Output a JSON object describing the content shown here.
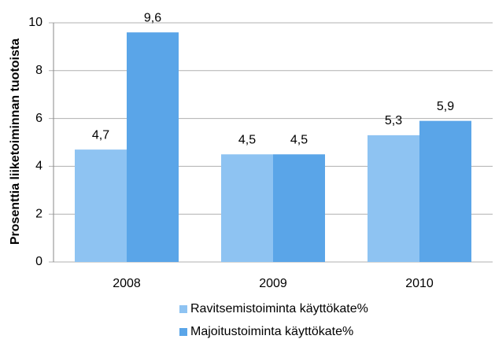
{
  "chart_data": {
    "type": "bar",
    "ylabel": "Prosenttia liiketoiminnan tuotoista",
    "categories": [
      "2008",
      "2009",
      "2010"
    ],
    "series": [
      {
        "name": "Ravitsemistoiminta käyttökate%",
        "color": "#8ec3f2",
        "values": [
          4.7,
          4.5,
          5.3
        ],
        "value_labels": [
          "4,7",
          "4,5",
          "5,3"
        ]
      },
      {
        "name": "Majoitustoiminta käyttökate%",
        "color": "#5aa5e8",
        "values": [
          9.6,
          4.5,
          5.9
        ],
        "value_labels": [
          "9,6",
          "4,5",
          "5,9"
        ]
      }
    ],
    "ylim": [
      0,
      10
    ],
    "yticks": [
      0,
      2,
      4,
      6,
      8,
      10
    ],
    "grid": true,
    "legend": "bottom"
  }
}
